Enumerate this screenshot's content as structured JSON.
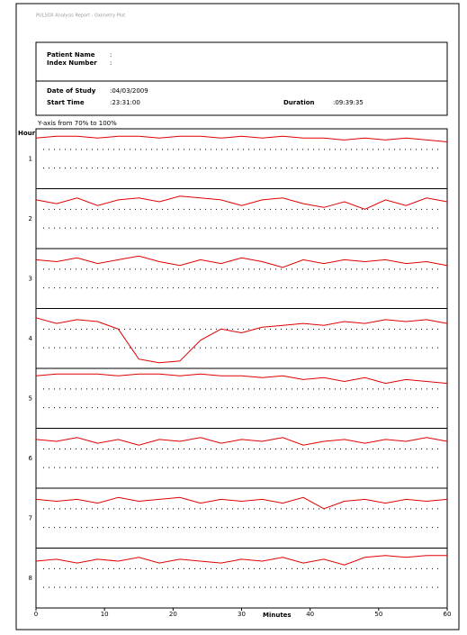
{
  "header": {
    "report_title": "PULSOX Analysis Report - Oximetry Plot",
    "patient_name_label": "Patient Name",
    "patient_name_value": ":",
    "index_number_label": "Index Number",
    "index_number_value": ":",
    "date_label": "Date of Study",
    "date_value": ":04/03/2009",
    "start_label": "Start Time",
    "start_value": ":23:31:00",
    "duration_label": "Duration",
    "duration_value": ":09:39:35"
  },
  "chart_data": {
    "type": "line",
    "note": "Y-axis from 70% to 100%",
    "y_label": "Hour",
    "x_label": "Minutes",
    "xlim": [
      0,
      60
    ],
    "xticks": [
      0,
      10,
      20,
      30,
      40,
      50,
      60
    ],
    "ylim": [
      70,
      100
    ],
    "grid_lines": [
      80,
      90
    ],
    "x": [
      0,
      3,
      6,
      9,
      12,
      15,
      18,
      21,
      24,
      27,
      30,
      33,
      36,
      39,
      42,
      45,
      48,
      51,
      54,
      57,
      60
    ],
    "series": [
      {
        "name": "1",
        "color": "#e00000",
        "values": [
          96,
          97,
          97,
          96,
          97,
          97,
          96,
          97,
          97,
          96,
          97,
          96,
          97,
          96,
          96,
          95,
          96,
          95,
          96,
          95,
          94
        ]
      },
      {
        "name": "2",
        "color": "#e00000",
        "values": [
          95,
          93,
          96,
          92,
          95,
          96,
          94,
          97,
          96,
          95,
          92,
          95,
          96,
          93,
          91,
          94,
          90,
          95,
          92,
          96,
          94
        ]
      },
      {
        "name": "3",
        "color": "#e00000",
        "values": [
          95,
          94,
          96,
          93,
          95,
          97,
          94,
          92,
          95,
          93,
          96,
          94,
          91,
          95,
          93,
          95,
          94,
          95,
          93,
          94,
          92
        ]
      },
      {
        "name": "4",
        "color": "#e00000",
        "values": [
          96,
          93,
          95,
          94,
          90,
          74,
          72,
          73,
          84,
          90,
          88,
          91,
          92,
          93,
          92,
          94,
          93,
          95,
          94,
          95,
          93
        ]
      },
      {
        "name": "5",
        "color": "#e00000",
        "values": [
          97,
          98,
          98,
          98,
          97,
          98,
          98,
          97,
          98,
          97,
          97,
          96,
          97,
          95,
          96,
          94,
          96,
          93,
          95,
          94,
          93
        ]
      },
      {
        "name": "6",
        "color": "#e00000",
        "values": [
          95,
          94,
          96,
          93,
          95,
          92,
          95,
          94,
          96,
          93,
          95,
          94,
          96,
          92,
          94,
          95,
          93,
          95,
          94,
          96,
          94
        ]
      },
      {
        "name": "7",
        "color": "#e00000",
        "values": [
          95,
          94,
          95,
          93,
          96,
          94,
          95,
          96,
          93,
          95,
          94,
          95,
          93,
          96,
          90,
          94,
          95,
          93,
          95,
          94,
          95
        ]
      },
      {
        "name": "8",
        "color": "#e00000",
        "values": [
          94,
          95,
          93,
          95,
          94,
          96,
          93,
          95,
          94,
          93,
          95,
          94,
          96,
          93,
          95,
          92,
          96,
          97,
          96,
          97,
          97
        ]
      }
    ]
  }
}
